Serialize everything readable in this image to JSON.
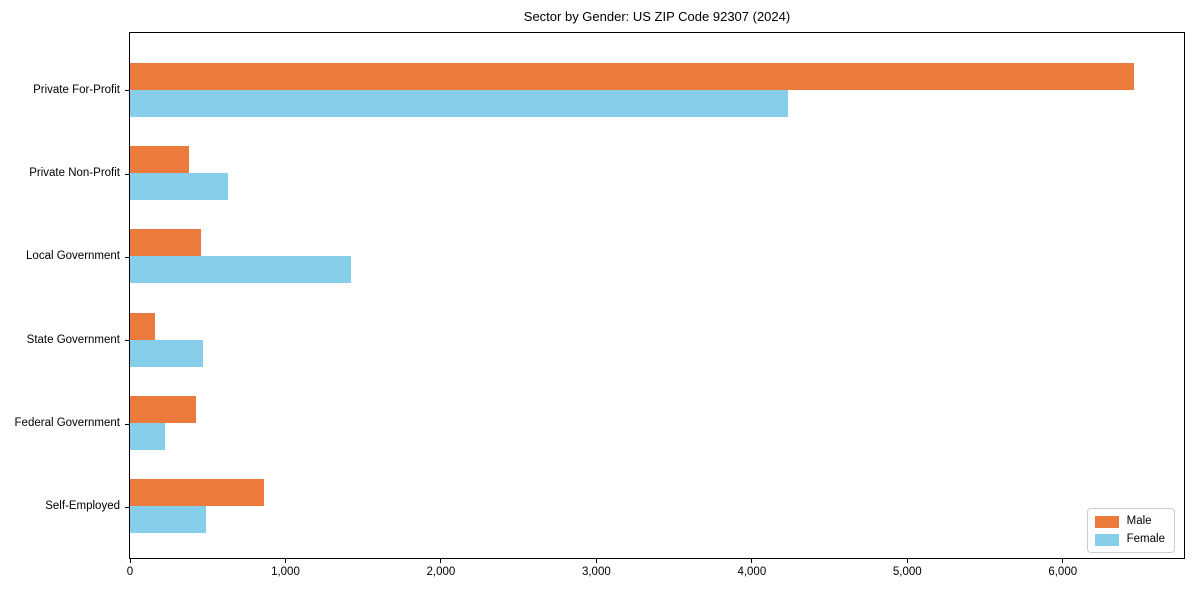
{
  "title": "Sector by Gender: US ZIP Code 92307 (2024)",
  "colors": {
    "male": "#EC7A3C",
    "female": "#87CEEB",
    "axis": "#000000",
    "legend_border": "#cccccc",
    "background": "#ffffff"
  },
  "legend": {
    "position": "lower right",
    "entries": [
      {
        "label": "Male",
        "color": "#EC7A3C"
      },
      {
        "label": "Female",
        "color": "#87CEEB"
      }
    ]
  },
  "chart_data": {
    "type": "bar",
    "orientation": "horizontal",
    "title": "Sector by Gender: US ZIP Code 92307 (2024)",
    "categories": [
      "Private For-Profit",
      "Private Non-Profit",
      "Local Government",
      "State Government",
      "Federal Government",
      "Self-Employed"
    ],
    "series": [
      {
        "name": "Male",
        "color": "#EC7A3C",
        "values": [
          6460,
          380,
          455,
          160,
          425,
          865
        ]
      },
      {
        "name": "Female",
        "color": "#87CEEB",
        "values": [
          4230,
          630,
          1420,
          470,
          225,
          490
        ]
      }
    ],
    "xlabel": "",
    "ylabel": "",
    "xlim": [
      0,
      6780
    ],
    "xticks": [
      0,
      1000,
      2000,
      3000,
      4000,
      5000,
      6000
    ],
    "xtick_labels": [
      "0",
      "1,000",
      "2,000",
      "3,000",
      "4,000",
      "5,000",
      "6,000"
    ],
    "grid": false,
    "legend_position": "lower right"
  }
}
